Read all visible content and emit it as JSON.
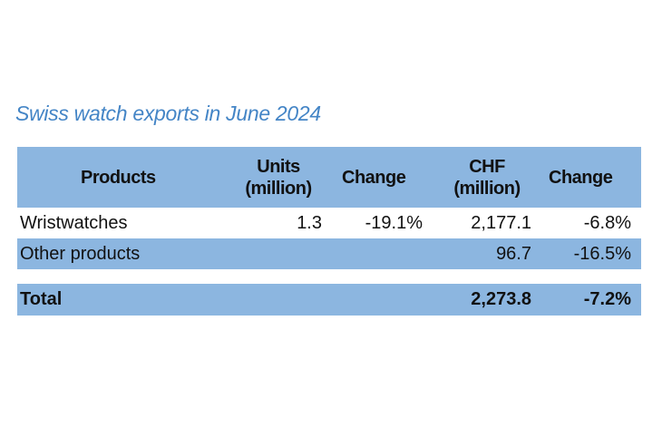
{
  "title": "Swiss watch exports in June 2024",
  "table": {
    "headers": {
      "products": "Products",
      "units_1": "Units",
      "units_2": "(million)",
      "units_change": "Change",
      "chf_1": "CHF",
      "chf_2": "(million)",
      "chf_change": "Change"
    },
    "rows": [
      {
        "product": "Wristwatches",
        "units": "1.3",
        "units_change": "-19.1%",
        "chf": "2,177.1",
        "chf_change": "-6.8%"
      },
      {
        "product": "Other products",
        "units": "",
        "units_change": "",
        "chf": "96.7",
        "chf_change": "-16.5%"
      }
    ],
    "total": {
      "label": "Total",
      "units": "",
      "units_change": "",
      "chf": "2,273.8",
      "chf_change": "-7.2%"
    }
  },
  "colors": {
    "title": "#4485c6",
    "fill": "#8cb6e0"
  }
}
